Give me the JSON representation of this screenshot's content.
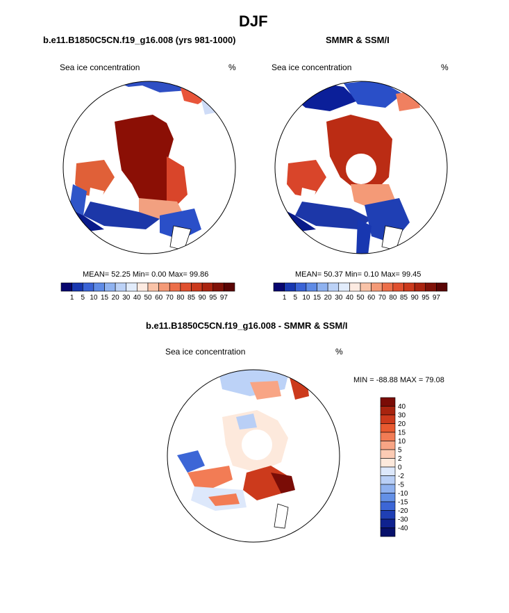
{
  "page": {
    "title": "DJF"
  },
  "panels": [
    {
      "title": "b.e11.B1850C5CN.f19_g16.008 (yrs 981-1000)",
      "variable": "Sea ice concentration",
      "units": "%",
      "stats": {
        "mean_label": "MEAN=",
        "mean": "52.25",
        "min_label": "Min=",
        "min": "0.00",
        "max_label": "Max=",
        "max": "99.86"
      }
    },
    {
      "title": "SMMR & SSM/I",
      "variable": "Sea ice concentration",
      "units": "%",
      "stats": {
        "mean_label": "MEAN=",
        "mean": "50.37",
        "min_label": "Min=",
        "min": "0.10",
        "max_label": "Max=",
        "max": "99.45"
      }
    },
    {
      "title": "b.e11.B1850C5CN.f19_g16.008 - SMMR & SSM/I",
      "variable": "Sea ice concentration",
      "units": "%",
      "minmax": "MIN = -88.88 MAX =  79.08"
    }
  ],
  "colorbar_abs": {
    "levels": [
      "1",
      "5",
      "10",
      "15",
      "20",
      "30",
      "40",
      "50",
      "60",
      "70",
      "80",
      "85",
      "90",
      "95",
      "97"
    ],
    "colors": [
      "#08066f",
      "#1837b0",
      "#3a63d6",
      "#5f8be6",
      "#8fb2f0",
      "#bcd2f7",
      "#e2ecfb",
      "#fdebe2",
      "#f9c3a8",
      "#f49a77",
      "#ec6f4a",
      "#e0502f",
      "#cb3a1d",
      "#aa2410",
      "#801209",
      "#5a0505"
    ]
  },
  "colorbar_diff": {
    "levels": [
      "40",
      "30",
      "20",
      "15",
      "10",
      "5",
      "2",
      "0",
      "-2",
      "-5",
      "-10",
      "-15",
      "-20",
      "-30",
      "-40"
    ],
    "colors": [
      "#7a0c06",
      "#a8240f",
      "#cc3a1c",
      "#e85a30",
      "#f27c55",
      "#f8a585",
      "#fccbb4",
      "#fde9dc",
      "#dde8fb",
      "#b9cff6",
      "#8fb1ef",
      "#6390e6",
      "#3c66d6",
      "#1f3fb4",
      "#0f228f",
      "#07106a"
    ]
  }
}
